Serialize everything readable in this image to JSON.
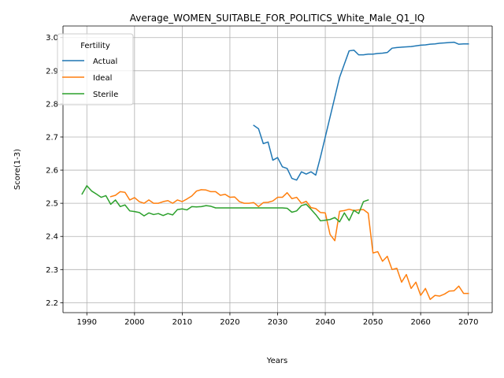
{
  "chart_data": {
    "type": "line",
    "title": "Average_WOMEN_SUITABLE_FOR_POLITICS_White_Male_Q1_IQ",
    "xlabel": "Years",
    "ylabel": "Score(1-3)",
    "xlim": [
      1985,
      2075
    ],
    "ylim": [
      2.17,
      3.035
    ],
    "xticks": [
      1990,
      2000,
      2010,
      2020,
      2030,
      2040,
      2050,
      2060,
      2070
    ],
    "yticks": [
      2.2,
      2.3,
      2.4,
      2.5,
      2.6,
      2.7,
      2.8,
      2.9,
      3.0
    ],
    "xtick_labels": [
      "1990",
      "2000",
      "2010",
      "2020",
      "2030",
      "2040",
      "2050",
      "2060",
      "2070"
    ],
    "ytick_labels": [
      "2.2",
      "2.3",
      "2.4",
      "2.5",
      "2.6",
      "2.7",
      "2.8",
      "2.9",
      "3.0"
    ],
    "grid": true,
    "legend": {
      "title": "Fertility",
      "position": "upper-left"
    },
    "series": [
      {
        "name": "Actual",
        "color": "#1f77b4",
        "x": [
          2025,
          2026,
          2027,
          2028,
          2029,
          2030,
          2031,
          2032,
          2033,
          2034,
          2035,
          2036,
          2037,
          2038,
          2039,
          2040,
          2041,
          2042,
          2043,
          2044,
          2045,
          2046,
          2047,
          2048,
          2049,
          2050,
          2051,
          2052,
          2053,
          2054,
          2055,
          2056,
          2057,
          2058,
          2059,
          2060,
          2061,
          2062,
          2063,
          2064,
          2065,
          2066,
          2067,
          2068,
          2069,
          2070
        ],
        "y": [
          2.735,
          2.725,
          2.68,
          2.685,
          2.63,
          2.638,
          2.61,
          2.605,
          2.575,
          2.57,
          2.595,
          2.588,
          2.595,
          2.585,
          2.64,
          2.7,
          2.76,
          2.82,
          2.88,
          2.92,
          2.96,
          2.962,
          2.948,
          2.948,
          2.95,
          2.95,
          2.952,
          2.953,
          2.955,
          2.968,
          2.97,
          2.971,
          2.972,
          2.973,
          2.975,
          2.977,
          2.978,
          2.98,
          2.981,
          2.983,
          2.984,
          2.985,
          2.986,
          2.98,
          2.981,
          2.981
        ]
      },
      {
        "name": "Ideal",
        "color": "#ff7f0e",
        "x": [
          1995,
          1996,
          1997,
          1998,
          1999,
          2000,
          2001,
          2002,
          2003,
          2004,
          2005,
          2006,
          2007,
          2008,
          2009,
          2010,
          2011,
          2012,
          2013,
          2014,
          2015,
          2016,
          2017,
          2018,
          2019,
          2020,
          2021,
          2022,
          2023,
          2024,
          2025,
          2026,
          2027,
          2028,
          2029,
          2030,
          2031,
          2032,
          2033,
          2034,
          2035,
          2036,
          2037,
          2038,
          2039,
          2040,
          2041,
          2042,
          2043,
          2044,
          2045,
          2046,
          2047,
          2048,
          2049,
          2050,
          2051,
          2052,
          2053,
          2054,
          2055,
          2056,
          2057,
          2058,
          2059,
          2060,
          2061,
          2062,
          2063,
          2064,
          2065,
          2066,
          2067,
          2068,
          2069,
          2070
        ],
        "y": [
          2.52,
          2.524,
          2.535,
          2.533,
          2.51,
          2.517,
          2.505,
          2.5,
          2.51,
          2.5,
          2.5,
          2.505,
          2.508,
          2.5,
          2.51,
          2.505,
          2.513,
          2.522,
          2.537,
          2.541,
          2.54,
          2.535,
          2.535,
          2.524,
          2.527,
          2.518,
          2.519,
          2.505,
          2.5,
          2.5,
          2.502,
          2.49,
          2.502,
          2.503,
          2.507,
          2.518,
          2.518,
          2.532,
          2.514,
          2.518,
          2.5,
          2.506,
          2.487,
          2.484,
          2.472,
          2.471,
          2.406,
          2.387,
          2.476,
          2.478,
          2.482,
          2.478,
          2.48,
          2.481,
          2.47,
          2.35,
          2.354,
          2.325,
          2.34,
          2.3,
          2.304,
          2.262,
          2.285,
          2.243,
          2.262,
          2.222,
          2.243,
          2.21,
          2.222,
          2.22,
          2.226,
          2.235,
          2.236,
          2.25,
          2.228,
          2.228
        ]
      },
      {
        "name": "Sterile",
        "color": "#2ca02c",
        "x": [
          1989,
          1990,
          1991,
          1992,
          1993,
          1994,
          1995,
          1996,
          1997,
          1998,
          1999,
          2000,
          2001,
          2002,
          2003,
          2004,
          2005,
          2006,
          2007,
          2008,
          2009,
          2010,
          2011,
          2012,
          2013,
          2014,
          2015,
          2016,
          2017,
          2018,
          2019,
          2020,
          2021,
          2022,
          2023,
          2024,
          2025,
          2026,
          2027,
          2028,
          2029,
          2030,
          2031,
          2032,
          2033,
          2034,
          2035,
          2036,
          2037,
          2038,
          2039,
          2040,
          2041,
          2042,
          2043,
          2044,
          2045,
          2046,
          2047,
          2048,
          2049
        ],
        "y": [
          2.528,
          2.553,
          2.537,
          2.528,
          2.518,
          2.523,
          2.497,
          2.51,
          2.49,
          2.495,
          2.477,
          2.475,
          2.472,
          2.462,
          2.471,
          2.466,
          2.469,
          2.463,
          2.469,
          2.465,
          2.481,
          2.483,
          2.48,
          2.49,
          2.489,
          2.49,
          2.493,
          2.491,
          2.486,
          2.486,
          2.486,
          2.486,
          2.486,
          2.486,
          2.486,
          2.486,
          2.486,
          2.486,
          2.486,
          2.486,
          2.486,
          2.486,
          2.486,
          2.485,
          2.473,
          2.477,
          2.493,
          2.497,
          2.482,
          2.466,
          2.447,
          2.449,
          2.451,
          2.457,
          2.444,
          2.471,
          2.448,
          2.479,
          2.469,
          2.505,
          2.51
        ]
      }
    ]
  }
}
